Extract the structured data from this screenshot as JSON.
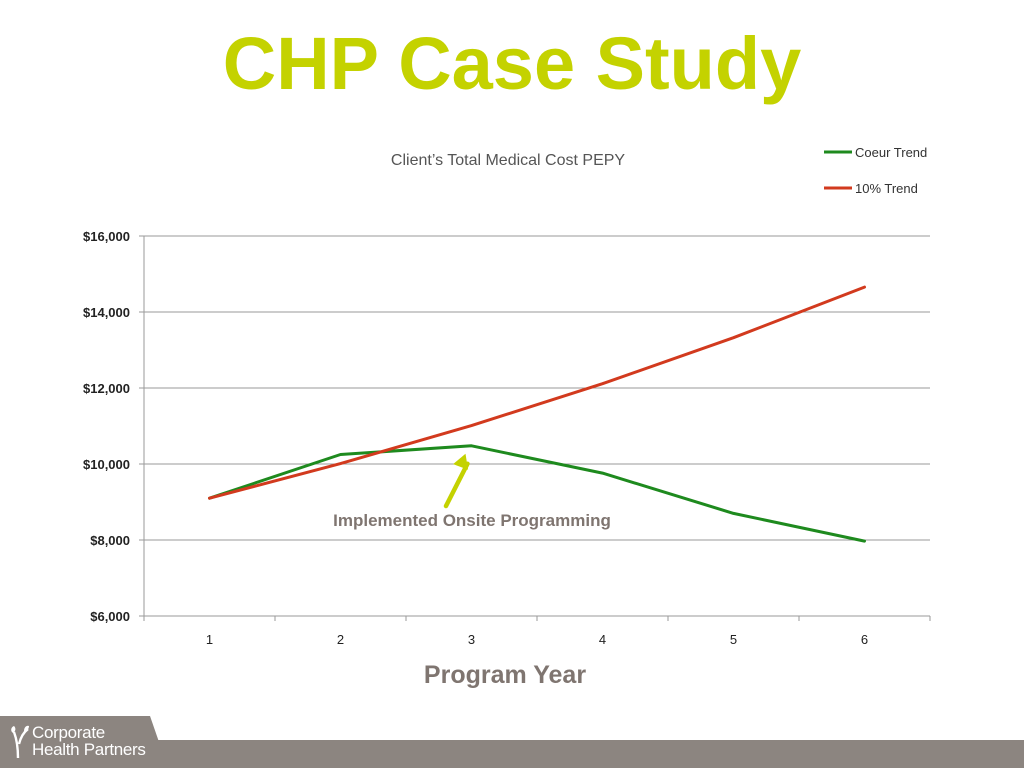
{
  "slide": {
    "title": "CHP Case Study",
    "title_color": "#c4d200"
  },
  "chart_data": {
    "type": "line",
    "title": "Client’s Total Medical Cost PEPY",
    "xlabel": "Program Year",
    "ylabel": "",
    "categories": [
      "1",
      "2",
      "3",
      "4",
      "5",
      "6"
    ],
    "ylim": [
      6000,
      16000
    ],
    "yticks": [
      6000,
      8000,
      10000,
      12000,
      14000,
      16000
    ],
    "ytick_labels": [
      "$6,000",
      "$8,000",
      "$10,000",
      "$12,000",
      "$14,000",
      "$16,000"
    ],
    "grid": true,
    "legend_position": "top-right",
    "series": [
      {
        "name": "Coeur Trend",
        "color": "#1e8a1e",
        "values": [
          9100,
          10250,
          10480,
          9760,
          8700,
          7970
        ]
      },
      {
        "name": "10% Trend",
        "color": "#d23a1e",
        "values": [
          9100,
          10010,
          11011,
          12112,
          13323,
          14656
        ]
      }
    ],
    "annotations": [
      {
        "text": "Implemented Onsite Programming",
        "points_to_category": "3",
        "arrow_color": "#c4d200"
      }
    ]
  },
  "footer": {
    "logo_line1": "Corporate",
    "logo_line2": "Health Partners",
    "bar_color": "#8c8580"
  }
}
